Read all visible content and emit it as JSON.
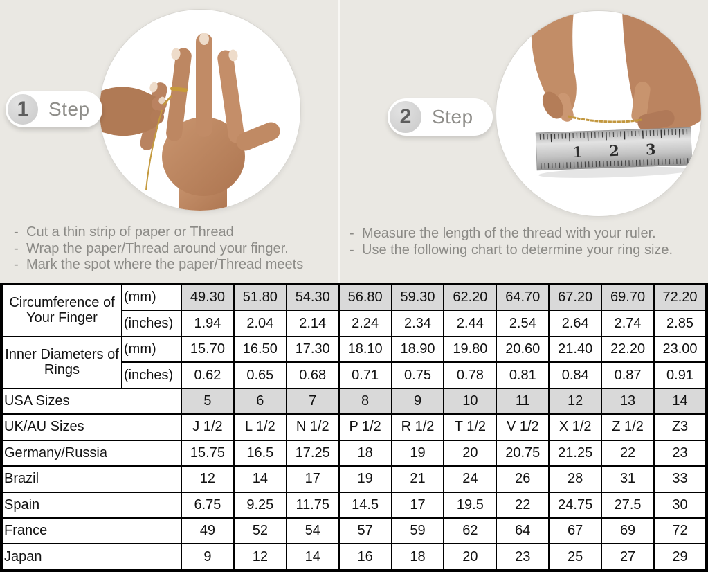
{
  "steps": [
    {
      "number": "1",
      "label": "Step",
      "illustration": "hand-with-ring-and-thread",
      "instructions": [
        "Cut a thin strip of paper or Thread",
        "Wrap the paper/Thread around your finger.",
        "Mark the spot where the paper/Thread meets"
      ]
    },
    {
      "number": "2",
      "label": "Step",
      "illustration": "hands-measuring-thread-with-ruler",
      "ruler_numbers": [
        "1",
        "2",
        "3"
      ],
      "instructions": [
        "Measure the length of the thread with your ruler.",
        "Use the following chart to determine your ring size."
      ]
    }
  ],
  "bullet": "-",
  "table": {
    "rows": [
      {
        "label": "Circumference of Your Finger",
        "rowspan": 2,
        "unit": "(mm)",
        "shaded": true,
        "values": [
          "49.30",
          "51.80",
          "54.30",
          "56.80",
          "59.30",
          "62.20",
          "64.70",
          "67.20",
          "69.70",
          "72.20"
        ]
      },
      {
        "unit": "(inches)",
        "shaded": false,
        "values": [
          "1.94",
          "2.04",
          "2.14",
          "2.24",
          "2.34",
          "2.44",
          "2.54",
          "2.64",
          "2.74",
          "2.85"
        ]
      },
      {
        "label": "Inner Diameters of Rings",
        "rowspan": 2,
        "unit": "(mm)",
        "shaded": false,
        "values": [
          "15.70",
          "16.50",
          "17.30",
          "18.10",
          "18.90",
          "19.80",
          "20.60",
          "21.40",
          "22.20",
          "23.00"
        ]
      },
      {
        "unit": "(inches)",
        "shaded": false,
        "values": [
          "0.62",
          "0.65",
          "0.68",
          "0.71",
          "0.75",
          "0.78",
          "0.81",
          "0.84",
          "0.87",
          "0.91"
        ]
      },
      {
        "label": "USA Sizes",
        "colspan": 2,
        "shaded": true,
        "values": [
          "5",
          "6",
          "7",
          "8",
          "9",
          "10",
          "11",
          "12",
          "13",
          "14"
        ]
      },
      {
        "label": "UK/AU Sizes",
        "colspan": 2,
        "shaded": false,
        "values": [
          "J 1/2",
          "L 1/2",
          "N 1/2",
          "P 1/2",
          "R 1/2",
          "T 1/2",
          "V 1/2",
          "X 1/2",
          "Z 1/2",
          "Z3"
        ]
      },
      {
        "label": "Germany/Russia",
        "colspan": 2,
        "shaded": false,
        "values": [
          "15.75",
          "16.5",
          "17.25",
          "18",
          "19",
          "20",
          "20.75",
          "21.25",
          "22",
          "23"
        ]
      },
      {
        "label": "Brazil",
        "colspan": 2,
        "shaded": false,
        "values": [
          "12",
          "14",
          "17",
          "19",
          "21",
          "24",
          "26",
          "28",
          "31",
          "33"
        ]
      },
      {
        "label": "Spain",
        "colspan": 2,
        "shaded": false,
        "values": [
          "6.75",
          "9.25",
          "11.75",
          "14.5",
          "17",
          "19.5",
          "22",
          "24.75",
          "27.5",
          "30"
        ]
      },
      {
        "label": "France",
        "colspan": 2,
        "shaded": false,
        "values": [
          "49",
          "52",
          "54",
          "57",
          "59",
          "62",
          "64",
          "67",
          "69",
          "72"
        ]
      },
      {
        "label": "Japan",
        "colspan": 2,
        "shaded": false,
        "values": [
          "9",
          "12",
          "14",
          "16",
          "18",
          "20",
          "23",
          "25",
          "27",
          "29"
        ]
      }
    ]
  },
  "colors": {
    "background": "#eae8e3",
    "shaded_cell": "#d9d9d9",
    "table_border": "#000000",
    "step_text": "#8b8a86",
    "gold_thread": "#c49a3f"
  }
}
